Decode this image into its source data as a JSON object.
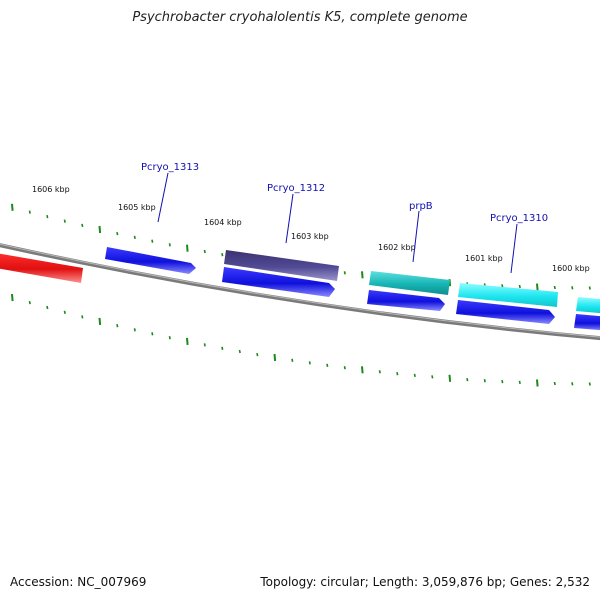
{
  "title": "Psychrobacter cryohalolentis K5, complete genome",
  "footer": {
    "accession": "Accession: NC_007969",
    "summary": "Topology: circular; Length: 3,059,876 bp; Genes: 2,532"
  },
  "colors": {
    "backbone": "#808080",
    "tick": "#1a8a1a",
    "label": "#1010b0",
    "gene_blue": "#1414e6",
    "gene_red": "#ee1111",
    "gene_purple": "#4b438c",
    "gene_teal": "#1fbdbd",
    "gene_cyan": "#22e5ee"
  },
  "kbp_labels": [
    "1606 kbp",
    "1605 kbp",
    "1604 kbp",
    "1603 kbp",
    "1602 kbp",
    "1601 kbp",
    "1600 kbp"
  ],
  "gene_labels": [
    "Pcryo_1313",
    "Pcryo_1312",
    "prpB",
    "Pcryo_1310"
  ]
}
